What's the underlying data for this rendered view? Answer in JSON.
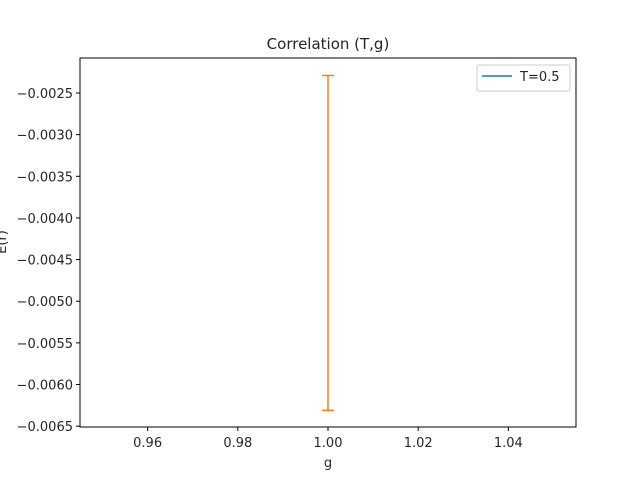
{
  "chart_data": {
    "type": "line",
    "title": "Correlation (T,g)",
    "xlabel": "g",
    "ylabel": "E(r)",
    "xlim": [
      0.945,
      1.055
    ],
    "ylim": [
      -0.00651,
      -0.00208
    ],
    "x_ticks": [
      0.96,
      0.98,
      1.0,
      1.02,
      1.04
    ],
    "x_tick_labels": [
      "0.96",
      "0.98",
      "1.00",
      "1.02",
      "1.04"
    ],
    "y_ticks": [
      -0.0025,
      -0.003,
      -0.0035,
      -0.004,
      -0.0045,
      -0.005,
      -0.0055,
      -0.006,
      -0.0065
    ],
    "y_tick_labels": [
      "−0.0025",
      "−0.0030",
      "−0.0035",
      "−0.0040",
      "−0.0045",
      "−0.0050",
      "−0.0055",
      "−0.0060",
      "−0.0065"
    ],
    "grid": false,
    "legend_position": "top-right",
    "series": [
      {
        "name": "T=0.5",
        "color": "#1f77b4",
        "x": [
          1.0
        ],
        "y": [
          -0.0043
        ],
        "errorbar": {
          "color": "#ff7f0e",
          "ymin": [
            -0.00631
          ],
          "ymax": [
            -0.00229
          ]
        }
      }
    ]
  }
}
